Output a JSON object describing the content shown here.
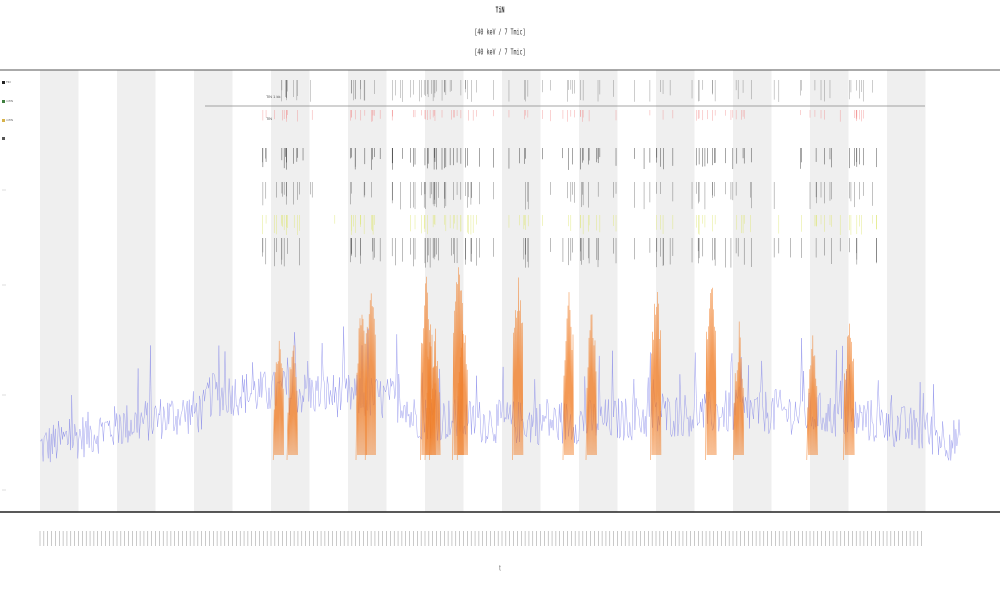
{
  "chart_data": {
    "type": "line",
    "title": "TiN",
    "subtitles": [
      "[40 keV / 7 Tmic]",
      "[40 keV / 7 Tmic]"
    ],
    "xlabel": "t",
    "ylabel": "",
    "background_band_count": 12,
    "legend": [
      {
        "label": "TiN",
        "color": "#222222"
      },
      {
        "label": "mTiN",
        "color": "#3f7f3f"
      },
      {
        "label": "mTiN",
        "color": "#d6b24a"
      },
      {
        "label": "",
        "color": "#555555"
      }
    ],
    "row_labels": [
      "TiN 1 kk",
      "TiN"
    ],
    "series": [
      {
        "name": "",
        "color": "#7c7fe8",
        "kind": "noisy-baseline"
      },
      {
        "name": "",
        "color": "#f07f2a",
        "kind": "peaks"
      },
      {
        "name": "",
        "color": "#222222",
        "kind": "event-ticks"
      },
      {
        "name": "",
        "color": "#dce56a",
        "kind": "event-ticks"
      },
      {
        "name": "",
        "color": "#f08080",
        "kind": "event-ticks"
      }
    ],
    "peaks_x": [
      0.26,
      0.275,
      0.35,
      0.36,
      0.42,
      0.425,
      0.43,
      0.455,
      0.46,
      0.52,
      0.575,
      0.6,
      0.67,
      0.73,
      0.76,
      0.84,
      0.88
    ],
    "grid": false
  }
}
